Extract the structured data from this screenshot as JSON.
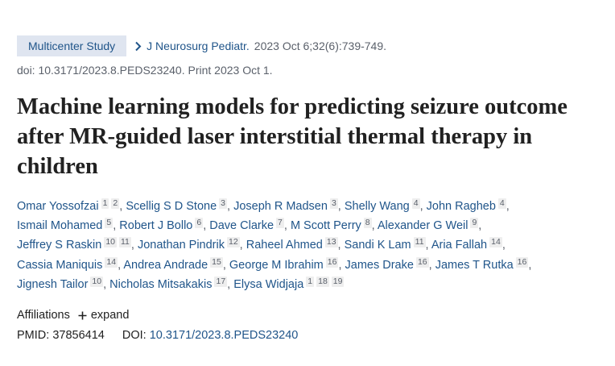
{
  "header": {
    "badge": "Multicenter Study",
    "journal": "J Neurosurg Pediatr.",
    "citation": "2023 Oct 6;32(6):739-749.",
    "doi_line": "doi: 10.3171/2023.8.PEDS23240. Print 2023 Oct 1."
  },
  "title": "Machine learning models for predicting seizure outcome after MR-guided laser interstitial thermal therapy in children",
  "authors": [
    {
      "name": "Omar Yossofzai",
      "affs": [
        "1",
        "2"
      ]
    },
    {
      "name": "Scellig S D Stone",
      "affs": [
        "3"
      ]
    },
    {
      "name": "Joseph R Madsen",
      "affs": [
        "3"
      ]
    },
    {
      "name": "Shelly Wang",
      "affs": [
        "4"
      ]
    },
    {
      "name": "John Ragheb",
      "affs": [
        "4"
      ]
    },
    {
      "name": "Ismail Mohamed",
      "affs": [
        "5"
      ]
    },
    {
      "name": "Robert J Bollo",
      "affs": [
        "6"
      ]
    },
    {
      "name": "Dave Clarke",
      "affs": [
        "7"
      ]
    },
    {
      "name": "M Scott Perry",
      "affs": [
        "8"
      ]
    },
    {
      "name": "Alexander G Weil",
      "affs": [
        "9"
      ]
    },
    {
      "name": "Jeffrey S Raskin",
      "affs": [
        "10",
        "11"
      ]
    },
    {
      "name": "Jonathan Pindrik",
      "affs": [
        "12"
      ]
    },
    {
      "name": "Raheel Ahmed",
      "affs": [
        "13"
      ]
    },
    {
      "name": "Sandi K Lam",
      "affs": [
        "11"
      ]
    },
    {
      "name": "Aria Fallah",
      "affs": [
        "14"
      ]
    },
    {
      "name": "Cassia Maniquis",
      "affs": [
        "14"
      ]
    },
    {
      "name": "Andrea Andrade",
      "affs": [
        "15"
      ]
    },
    {
      "name": "George M Ibrahim",
      "affs": [
        "16"
      ]
    },
    {
      "name": "James Drake",
      "affs": [
        "16"
      ]
    },
    {
      "name": "James T Rutka",
      "affs": [
        "16"
      ]
    },
    {
      "name": "Jignesh Tailor",
      "affs": [
        "10"
      ]
    },
    {
      "name": "Nicholas Mitsakakis",
      "affs": [
        "17"
      ]
    },
    {
      "name": "Elysa Widjaja",
      "affs": [
        "1",
        "18",
        "19"
      ]
    }
  ],
  "affiliations": {
    "label": "Affiliations",
    "expand_label": "expand"
  },
  "ids": {
    "pmid_label": "PMID:",
    "pmid": "37856414",
    "doi_label": "DOI:",
    "doi": "10.3171/2023.8.PEDS23240"
  },
  "colors": {
    "link": "#20558a",
    "badge_bg": "#dfe5f0",
    "muted": "#5b616b",
    "text": "#212121"
  },
  "icons": {
    "journal_chevron": "chevron-right-icon",
    "expand": "plus-icon"
  }
}
